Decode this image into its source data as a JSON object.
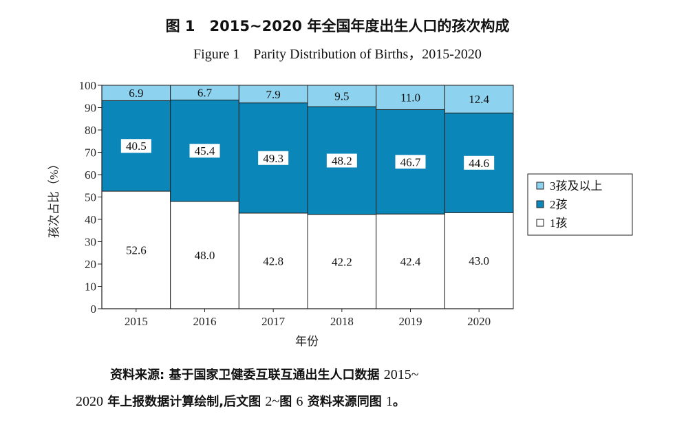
{
  "figure": {
    "title_cn": "图 1　2015~2020 年全国年度出生人口的孩次构成",
    "title_en": "Figure 1　Parity Distribution of Births，2015-2020"
  },
  "source_note": {
    "line1_prefix": "资料来源: 基于国家卫健委互联互通出生人口数据 ",
    "line1_num": "2015~",
    "line2_num1": "2020",
    "line2_mid": " 年上报数据计算绘制,后文图 ",
    "line2_num2": "2~",
    "line2_mid2": "图 ",
    "line2_num3": "6",
    "line2_mid3": " 资料来源同图 ",
    "line2_num4": "1",
    "line2_end": "。"
  },
  "colors": {
    "third_plus": "#8dd3ef",
    "second": "#0b86b8",
    "first": "#ffffff",
    "axis": "#222222"
  },
  "chart_data": {
    "type": "bar",
    "stacked": true,
    "categories": [
      "2015",
      "2016",
      "2017",
      "2018",
      "2019",
      "2020"
    ],
    "series": [
      {
        "name": "1孩",
        "values": [
          52.6,
          48.0,
          42.8,
          42.2,
          42.4,
          43.0
        ]
      },
      {
        "name": "2孩",
        "values": [
          40.5,
          45.4,
          49.3,
          48.2,
          46.7,
          44.6
        ]
      },
      {
        "name": "3孩及以上",
        "values": [
          6.9,
          6.7,
          7.9,
          9.5,
          11.0,
          12.4
        ]
      }
    ],
    "labels": {
      "1孩": [
        "52.6",
        "48.0",
        "42.8",
        "42.2",
        "42.4",
        "43.0"
      ],
      "2孩": [
        "40.5",
        "45.4",
        "49.3",
        "48.2",
        "46.7",
        "44.6"
      ],
      "3孩及以上": [
        "6.9",
        "6.7",
        "7.9",
        "9.5",
        "11.0",
        "12.4"
      ]
    },
    "xlabel": "年份",
    "ylabel": "孩次占比（%）",
    "ylim": [
      0,
      100
    ],
    "yticks": [
      "0",
      "10",
      "20",
      "30",
      "40",
      "50",
      "60",
      "70",
      "80",
      "90",
      "100"
    ],
    "legend": {
      "placement": "right",
      "entries": [
        "3孩及以上",
        "2孩",
        "1孩"
      ]
    },
    "grid": false
  }
}
